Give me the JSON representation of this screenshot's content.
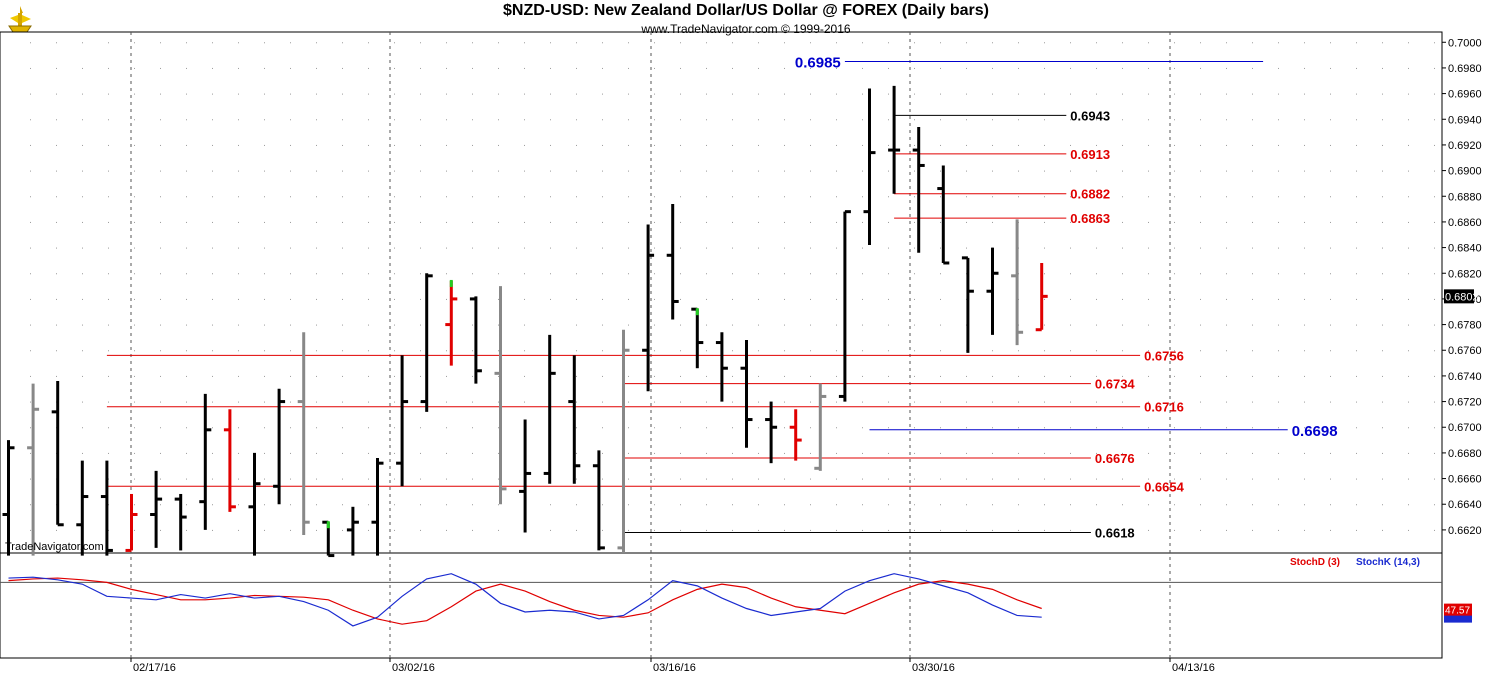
{
  "header": {
    "title": "$NZD-USD:  New Zealand Dollar/US Dollar @ FOREX  (Daily bars)",
    "subtitle": "www.TradeNavigator.com © 1999-2016",
    "watermark": "TradeNavigator.com"
  },
  "colors": {
    "up_bar": "#000000",
    "down_bar": "#888888",
    "red_bar": "#e00000",
    "green_tick": "#22cc22",
    "support_line": "#cc0000",
    "blue_line": "#0000cc",
    "stoch_d": "#e00000",
    "stoch_k": "#1a2bd0"
  },
  "chart_data": [
    {
      "type": "ohlc",
      "title": "$NZD-USD:  New Zealand Dollar/US Dollar @ FOREX  (Daily bars)",
      "x_tick_labels": [
        "02/17/16",
        "03/02/16",
        "03/16/16",
        "03/30/16",
        "04/13/16"
      ],
      "y_tick_labels": [
        "0.7000",
        "0.6980",
        "0.6960",
        "0.6940",
        "0.6920",
        "0.6900",
        "0.6880",
        "0.6860",
        "0.6840",
        "0.6820",
        "0.6800",
        "0.6780",
        "0.6760",
        "0.6740",
        "0.6720",
        "0.6700",
        "0.6680",
        "0.6660",
        "0.6640",
        "0.6620"
      ],
      "ylim": [
        0.6602,
        0.7008
      ],
      "last_price_label": "0.6802",
      "bars": [
        {
          "o": 0.6632,
          "h": 0.669,
          "l": 0.66,
          "c": 0.6684,
          "color": "black"
        },
        {
          "o": 0.6684,
          "h": 0.6734,
          "l": 0.66,
          "c": 0.6714,
          "color": "gray"
        },
        {
          "o": 0.6712,
          "h": 0.6736,
          "l": 0.6624,
          "c": 0.6624,
          "color": "black"
        },
        {
          "o": 0.6624,
          "h": 0.6674,
          "l": 0.66,
          "c": 0.6646,
          "color": "black"
        },
        {
          "o": 0.6646,
          "h": 0.6674,
          "l": 0.66,
          "c": 0.6604,
          "color": "black"
        },
        {
          "o": 0.6604,
          "h": 0.6648,
          "l": 0.6604,
          "c": 0.6632,
          "color": "red"
        },
        {
          "o": 0.6632,
          "h": 0.6666,
          "l": 0.6606,
          "c": 0.6644,
          "color": "black"
        },
        {
          "o": 0.6644,
          "h": 0.6648,
          "l": 0.6604,
          "c": 0.663,
          "color": "black"
        },
        {
          "o": 0.6642,
          "h": 0.6726,
          "l": 0.662,
          "c": 0.6698,
          "color": "black"
        },
        {
          "o": 0.6698,
          "h": 0.6714,
          "l": 0.6634,
          "c": 0.6638,
          "color": "red"
        },
        {
          "o": 0.6638,
          "h": 0.668,
          "l": 0.66,
          "c": 0.6656,
          "color": "black"
        },
        {
          "o": 0.6654,
          "h": 0.673,
          "l": 0.664,
          "c": 0.672,
          "color": "black"
        },
        {
          "o": 0.672,
          "h": 0.6774,
          "l": 0.6616,
          "c": 0.6626,
          "color": "gray"
        },
        {
          "o": 0.6626,
          "h": 0.6626,
          "l": 0.66,
          "c": 0.66,
          "color": "black",
          "high_tick": "green"
        },
        {
          "o": 0.662,
          "h": 0.6638,
          "l": 0.66,
          "c": 0.6626,
          "color": "black"
        },
        {
          "o": 0.6626,
          "h": 0.6676,
          "l": 0.66,
          "c": 0.6672,
          "color": "black"
        },
        {
          "o": 0.6672,
          "h": 0.6756,
          "l": 0.6654,
          "c": 0.672,
          "color": "black"
        },
        {
          "o": 0.672,
          "h": 0.682,
          "l": 0.6712,
          "c": 0.6818,
          "color": "black"
        },
        {
          "o": 0.678,
          "h": 0.6814,
          "l": 0.6748,
          "c": 0.68,
          "color": "red",
          "high_tick": "green"
        },
        {
          "o": 0.68,
          "h": 0.6802,
          "l": 0.6734,
          "c": 0.6744,
          "color": "black"
        },
        {
          "o": 0.6742,
          "h": 0.681,
          "l": 0.664,
          "c": 0.6652,
          "color": "gray"
        },
        {
          "o": 0.665,
          "h": 0.6706,
          "l": 0.6618,
          "c": 0.6664,
          "color": "black"
        },
        {
          "o": 0.6664,
          "h": 0.6772,
          "l": 0.6656,
          "c": 0.6742,
          "color": "black"
        },
        {
          "o": 0.672,
          "h": 0.6756,
          "l": 0.6656,
          "c": 0.667,
          "color": "black"
        },
        {
          "o": 0.667,
          "h": 0.6682,
          "l": 0.6604,
          "c": 0.6606,
          "color": "black"
        },
        {
          "o": 0.6606,
          "h": 0.6776,
          "l": 0.6602,
          "c": 0.676,
          "color": "gray"
        },
        {
          "o": 0.676,
          "h": 0.6858,
          "l": 0.6728,
          "c": 0.6834,
          "color": "black"
        },
        {
          "o": 0.6834,
          "h": 0.6874,
          "l": 0.6784,
          "c": 0.6798,
          "color": "black"
        },
        {
          "o": 0.6792,
          "h": 0.6792,
          "l": 0.6746,
          "c": 0.6766,
          "color": "black",
          "high_tick": "green"
        },
        {
          "o": 0.6766,
          "h": 0.6774,
          "l": 0.672,
          "c": 0.6746,
          "color": "black"
        },
        {
          "o": 0.6746,
          "h": 0.6768,
          "l": 0.6684,
          "c": 0.6706,
          "color": "black"
        },
        {
          "o": 0.6706,
          "h": 0.672,
          "l": 0.6672,
          "c": 0.67,
          "color": "black"
        },
        {
          "o": 0.67,
          "h": 0.6714,
          "l": 0.6674,
          "c": 0.669,
          "color": "red"
        },
        {
          "o": 0.6668,
          "h": 0.6734,
          "l": 0.6666,
          "c": 0.6724,
          "color": "gray"
        },
        {
          "o": 0.6724,
          "h": 0.6868,
          "l": 0.672,
          "c": 0.6868,
          "color": "black"
        },
        {
          "o": 0.6868,
          "h": 0.6964,
          "l": 0.6842,
          "c": 0.6914,
          "color": "black"
        },
        {
          "o": 0.6916,
          "h": 0.6966,
          "l": 0.6882,
          "c": 0.6916,
          "color": "black"
        },
        {
          "o": 0.6916,
          "h": 0.6934,
          "l": 0.6836,
          "c": 0.6904,
          "color": "black"
        },
        {
          "o": 0.6886,
          "h": 0.6904,
          "l": 0.6828,
          "c": 0.6828,
          "color": "black"
        },
        {
          "o": 0.6832,
          "h": 0.6832,
          "l": 0.6758,
          "c": 0.6806,
          "color": "black"
        },
        {
          "o": 0.6806,
          "h": 0.684,
          "l": 0.6772,
          "c": 0.682,
          "color": "black"
        },
        {
          "o": 0.6818,
          "h": 0.6862,
          "l": 0.6764,
          "c": 0.6774,
          "color": "gray"
        },
        {
          "o": 0.6776,
          "h": 0.6828,
          "l": 0.6776,
          "c": 0.6802,
          "color": "red"
        }
      ],
      "levels": [
        {
          "value": 0.6985,
          "label": "0.6985",
          "color": "blue",
          "x_from_bar": 34,
          "x_to_bar": 51
        },
        {
          "value": 0.6943,
          "label": "0.6943",
          "color": "black",
          "x_from_bar": 36,
          "x_to_bar": 43
        },
        {
          "value": 0.6913,
          "label": "0.6913",
          "color": "red",
          "x_from_bar": 36,
          "x_to_bar": 43
        },
        {
          "value": 0.6882,
          "label": "0.6882",
          "color": "red",
          "x_from_bar": 36,
          "x_to_bar": 43
        },
        {
          "value": 0.6863,
          "label": "0.6863",
          "color": "red",
          "x_from_bar": 36,
          "x_to_bar": 43
        },
        {
          "value": 0.6756,
          "label": "0.6756",
          "color": "red",
          "x_from_bar": 4,
          "x_to_bar": 46
        },
        {
          "value": 0.6734,
          "label": "0.6734",
          "color": "red",
          "x_from_bar": 25,
          "x_to_bar": 44
        },
        {
          "value": 0.6716,
          "label": "0.6716",
          "color": "red",
          "x_from_bar": 4,
          "x_to_bar": 46
        },
        {
          "value": 0.6698,
          "label": "0.6698",
          "color": "blue",
          "x_from_bar": 35,
          "x_to_bar": 52
        },
        {
          "value": 0.6676,
          "label": "0.6676",
          "color": "red",
          "x_from_bar": 25,
          "x_to_bar": 44
        },
        {
          "value": 0.6654,
          "label": "0.6654",
          "color": "red",
          "x_from_bar": 4,
          "x_to_bar": 46
        },
        {
          "value": 0.6618,
          "label": "0.6618",
          "color": "black",
          "x_from_bar": 25,
          "x_to_bar": 44
        }
      ]
    },
    {
      "type": "line",
      "legend": [
        "StochD (3)",
        "StochK (14,3)"
      ],
      "ylim": [
        0,
        100
      ],
      "reference_line": 80,
      "last_value_label": "47.57",
      "series": [
        {
          "name": "StochD (3)",
          "color": "red",
          "values": [
            82,
            84,
            85,
            83,
            80,
            72,
            66,
            60,
            60,
            62,
            65,
            64,
            63,
            60,
            48,
            38,
            32,
            36,
            52,
            70,
            78,
            70,
            58,
            48,
            42,
            40,
            45,
            60,
            72,
            78,
            74,
            62,
            52,
            48,
            44,
            56,
            68,
            78,
            82,
            78,
            72,
            60,
            50
          ]
        },
        {
          "name": "StochK (14,3)",
          "color": "blue",
          "values": [
            85,
            86,
            83,
            78,
            64,
            62,
            60,
            66,
            62,
            67,
            62,
            64,
            58,
            48,
            30,
            40,
            64,
            84,
            90,
            78,
            56,
            46,
            48,
            46,
            38,
            42,
            60,
            82,
            76,
            62,
            50,
            42,
            46,
            50,
            70,
            82,
            90,
            84,
            76,
            68,
            54,
            42,
            40
          ]
        }
      ],
      "tick_labels": [
        "47.57"
      ]
    }
  ]
}
